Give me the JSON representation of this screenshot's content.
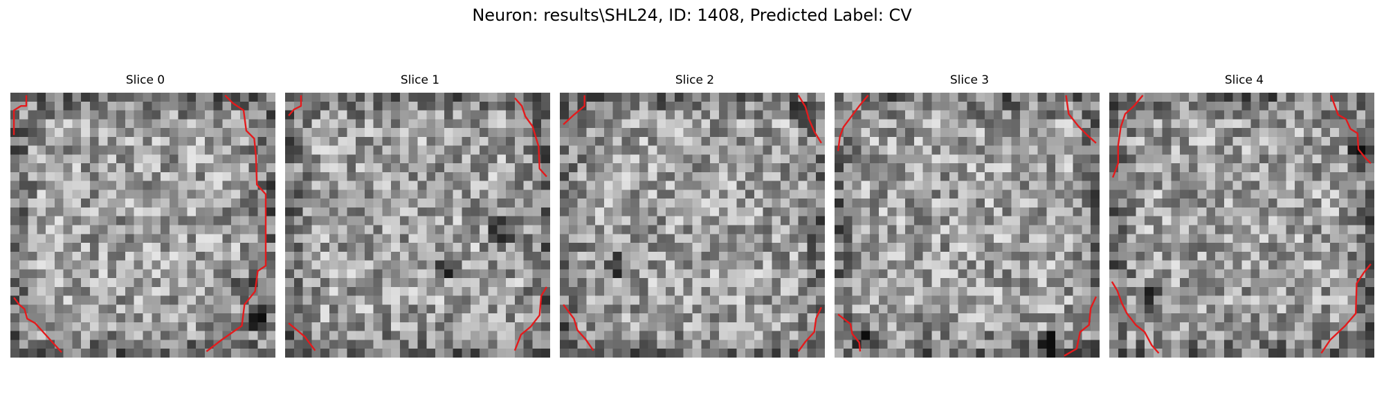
{
  "figure": {
    "title": "Neuron: results\\SHL24, ID: 1408, Predicted Label: CV"
  },
  "slices": [
    {
      "title": "Slice 0",
      "seed": 11
    },
    {
      "title": "Slice 1",
      "seed": 23
    },
    {
      "title": "Slice 2",
      "seed": 37
    },
    {
      "title": "Slice 3",
      "seed": 41
    },
    {
      "title": "Slice 4",
      "seed": 59
    }
  ],
  "image": {
    "grid_size": 30,
    "colormap": "gray",
    "contour_color": "#e41a1c",
    "dark_spots": [
      [
        [
          0,
          27,
          25
        ],
        [
          0,
          26,
          22
        ]
      ],
      [
        [
          1,
          24,
          15
        ],
        [
          1,
          18,
          19
        ]
      ],
      [
        [
          2,
          27,
          2
        ],
        [
          2,
          6,
          19
        ]
      ],
      [
        [
          3,
          24,
          28
        ],
        [
          3,
          3,
          27
        ]
      ],
      [
        [
          4,
          4,
          23
        ],
        [
          4,
          28,
          6
        ]
      ]
    ]
  },
  "contours": [
    [
      [
        [
          1.8,
          0.3
        ],
        [
          1.8,
          1.5
        ],
        [
          1.2,
          1.5
        ],
        [
          0.4,
          2.0
        ],
        [
          0.4,
          4.8
        ]
      ],
      [
        [
          24.3,
          0.3
        ],
        [
          25.2,
          1.2
        ],
        [
          26.4,
          2.0
        ],
        [
          26.7,
          4.3
        ],
        [
          27.6,
          5.2
        ],
        [
          27.8,
          7.2
        ],
        [
          27.9,
          10.4
        ],
        [
          28.9,
          11.5
        ],
        [
          28.9,
          13.5
        ],
        [
          28.9,
          19.6
        ],
        [
          28.0,
          20.2
        ],
        [
          27.7,
          22.5
        ],
        [
          26.5,
          24.0
        ],
        [
          26.2,
          26.4
        ],
        [
          23.9,
          28.0
        ],
        [
          22.2,
          29.3
        ]
      ],
      [
        [
          0.4,
          23.2
        ],
        [
          1.0,
          24.0
        ],
        [
          1.6,
          24.5
        ],
        [
          1.9,
          25.6
        ],
        [
          2.8,
          26.1
        ],
        [
          4.7,
          28.2
        ],
        [
          5.8,
          29.4
        ]
      ]
    ],
    [
      [
        [
          1.8,
          0.3
        ],
        [
          1.8,
          1.5
        ],
        [
          1.0,
          1.9
        ],
        [
          0.4,
          2.6
        ]
      ],
      [
        [
          26.0,
          0.6
        ],
        [
          26.8,
          1.5
        ],
        [
          27.2,
          2.7
        ],
        [
          28.0,
          3.8
        ],
        [
          28.7,
          6.1
        ],
        [
          28.8,
          8.6
        ],
        [
          29.6,
          9.5
        ]
      ],
      [
        [
          0.4,
          26.1
        ],
        [
          2.2,
          27.6
        ],
        [
          3.4,
          29.2
        ]
      ],
      [
        [
          29.6,
          22.0
        ],
        [
          29.0,
          23.0
        ],
        [
          28.8,
          25.2
        ],
        [
          27.8,
          26.5
        ],
        [
          26.7,
          27.4
        ],
        [
          26.0,
          29.2
        ]
      ]
    ],
    [
      [
        [
          2.8,
          0.3
        ],
        [
          2.8,
          1.5
        ],
        [
          1.6,
          2.5
        ],
        [
          0.4,
          3.6
        ]
      ],
      [
        [
          27.0,
          0.3
        ],
        [
          27.8,
          1.6
        ],
        [
          28.2,
          3.0
        ],
        [
          28.8,
          4.4
        ],
        [
          29.6,
          5.7
        ]
      ],
      [
        [
          0.4,
          24.0
        ],
        [
          1.6,
          25.6
        ],
        [
          2.0,
          26.9
        ],
        [
          2.9,
          27.9
        ],
        [
          3.8,
          29.2
        ]
      ],
      [
        [
          29.6,
          24.3
        ],
        [
          29.0,
          25.6
        ],
        [
          28.8,
          27.1
        ],
        [
          27.8,
          28.2
        ],
        [
          27.0,
          29.3
        ]
      ]
    ],
    [
      [
        [
          3.8,
          0.3
        ],
        [
          2.8,
          1.5
        ],
        [
          1.0,
          3.9
        ],
        [
          0.6,
          5.0
        ],
        [
          0.4,
          6.6
        ]
      ],
      [
        [
          26.2,
          0.3
        ],
        [
          26.5,
          2.4
        ],
        [
          27.6,
          3.8
        ],
        [
          28.6,
          4.8
        ],
        [
          29.6,
          5.7
        ]
      ],
      [
        [
          0.4,
          25.1
        ],
        [
          1.8,
          26.2
        ],
        [
          2.0,
          27.3
        ],
        [
          2.8,
          28.3
        ],
        [
          2.9,
          29.3
        ]
      ],
      [
        [
          29.6,
          23.1
        ],
        [
          29.0,
          24.4
        ],
        [
          28.8,
          26.3
        ],
        [
          27.8,
          27.1
        ],
        [
          27.4,
          29.0
        ],
        [
          26.0,
          29.8
        ]
      ]
    ],
    [
      [
        [
          3.8,
          0.3
        ],
        [
          2.8,
          1.5
        ],
        [
          1.8,
          2.4
        ],
        [
          1.3,
          3.9
        ],
        [
          1.0,
          6.0
        ],
        [
          1.0,
          8.0
        ],
        [
          0.4,
          9.6
        ]
      ],
      [
        [
          25.1,
          0.3
        ],
        [
          25.9,
          2.5
        ],
        [
          26.8,
          3.0
        ],
        [
          27.3,
          4.1
        ],
        [
          28.1,
          4.6
        ],
        [
          28.2,
          6.4
        ],
        [
          29.0,
          7.4
        ],
        [
          29.6,
          8.0
        ]
      ],
      [
        [
          0.3,
          21.4
        ],
        [
          0.9,
          22.4
        ],
        [
          1.4,
          23.8
        ],
        [
          2.0,
          25.0
        ],
        [
          3.0,
          26.3
        ],
        [
          4.0,
          27.1
        ],
        [
          4.8,
          28.6
        ],
        [
          5.6,
          29.5
        ]
      ],
      [
        [
          29.6,
          19.4
        ],
        [
          28.8,
          20.4
        ],
        [
          28.0,
          21.6
        ],
        [
          27.9,
          25.0
        ],
        [
          26.7,
          26.4
        ],
        [
          25.0,
          28.0
        ],
        [
          24.0,
          29.5
        ]
      ]
    ]
  ]
}
